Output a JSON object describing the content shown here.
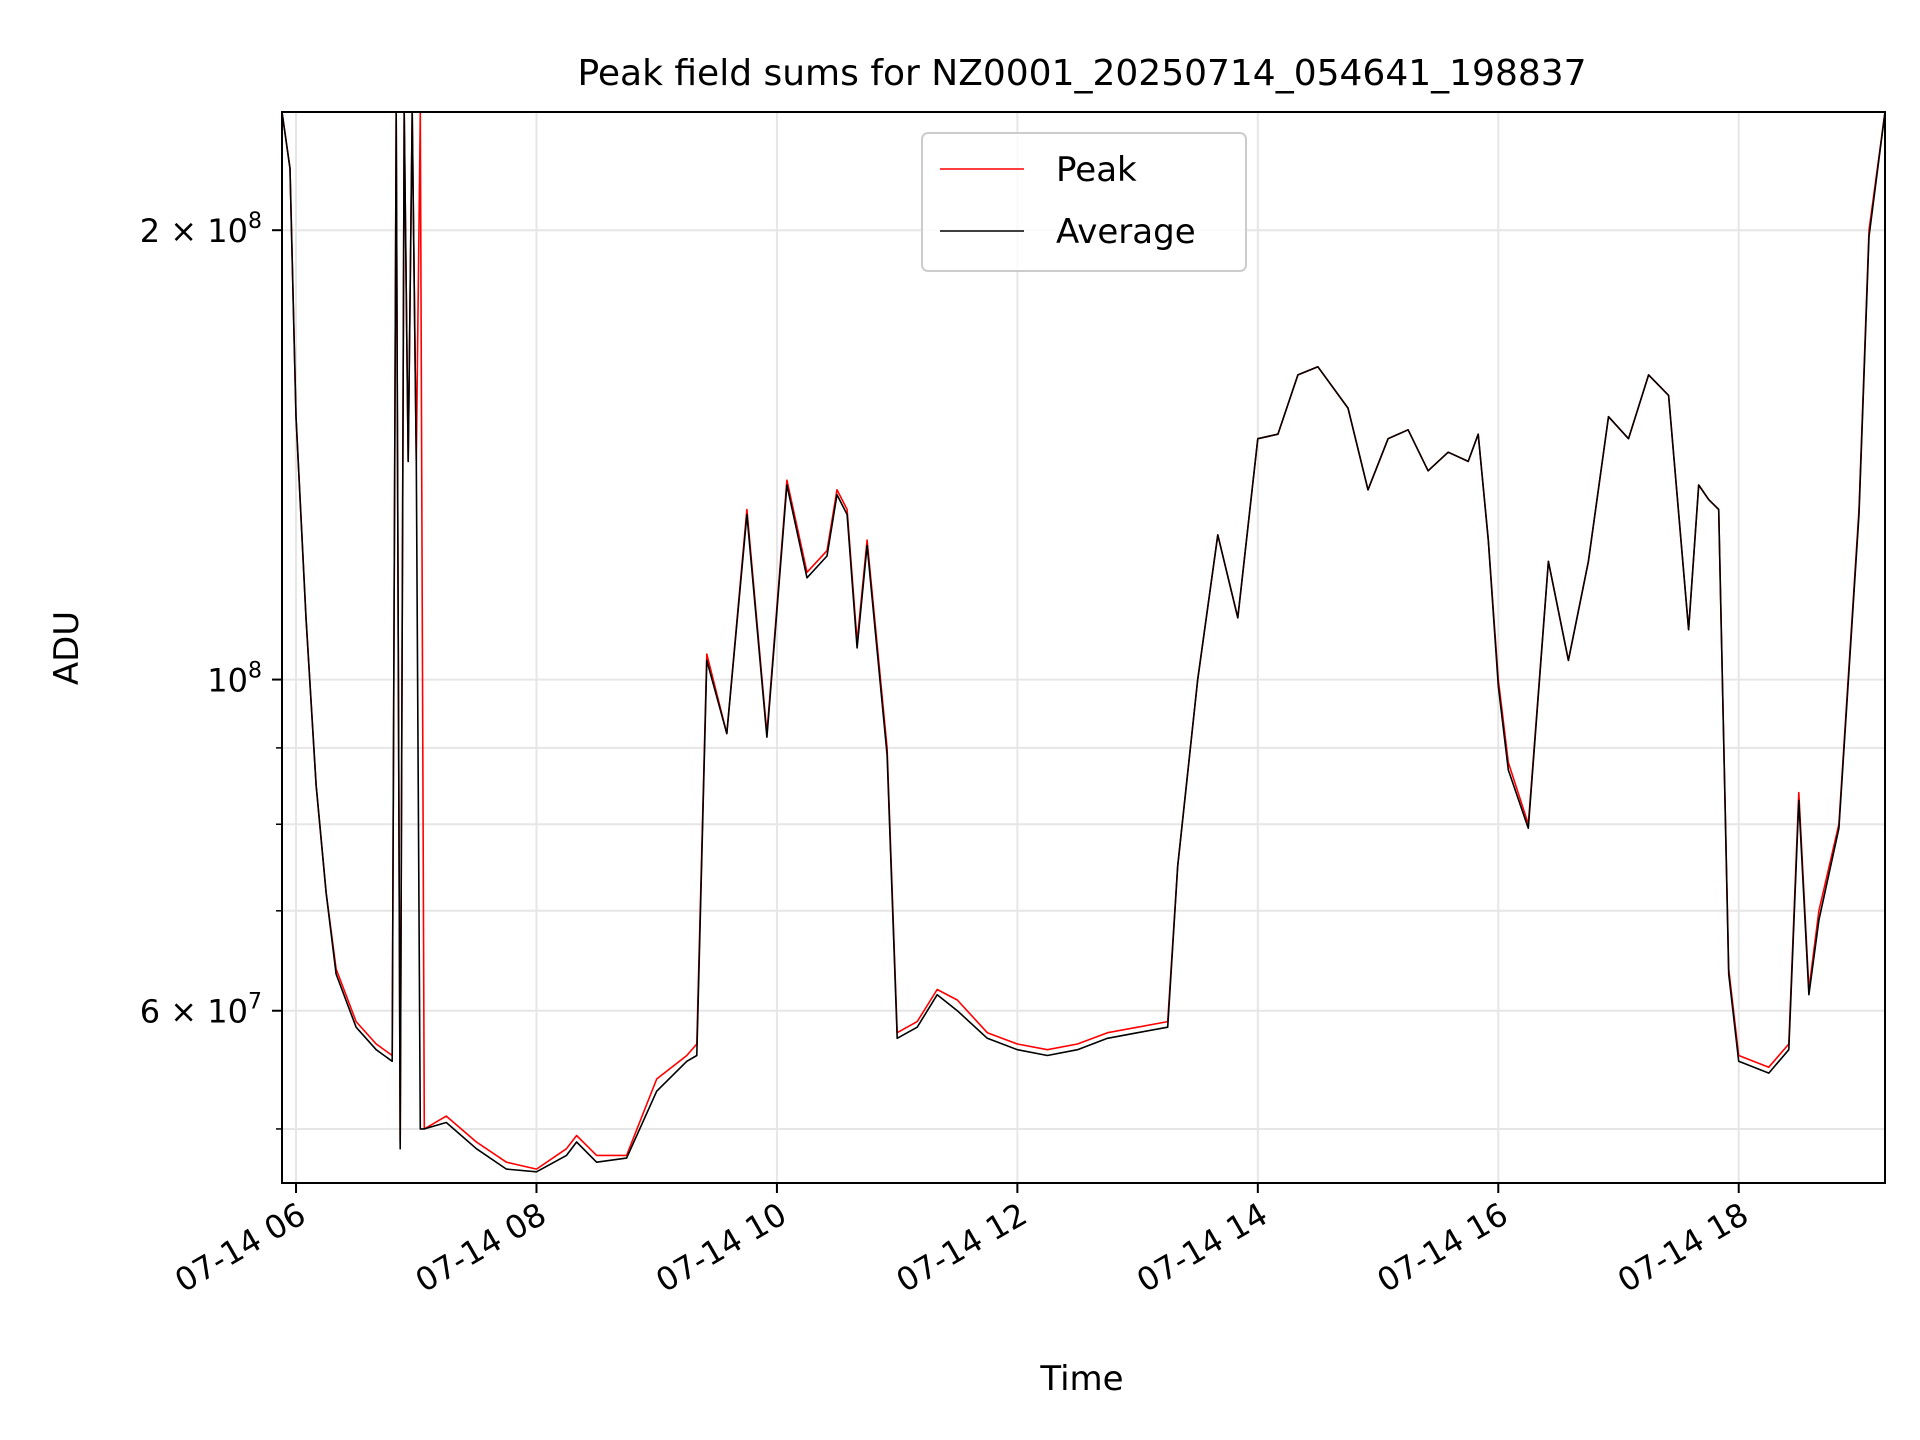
{
  "chart_data": {
    "type": "line",
    "title": "Peak field sums for NZ0001_20250714_054641_198837",
    "xlabel": "Time",
    "ylabel": "ADU",
    "y_scale": "log",
    "ylim": [
      46000000,
      240000000
    ],
    "xlim": [
      "2025-07-14 05:53",
      "2025-07-14 19:13"
    ],
    "grid": true,
    "legend_position": "upper center",
    "x_ticks": [
      {
        "t": "2025-07-14 06:00",
        "label": "07-14 06"
      },
      {
        "t": "2025-07-14 08:00",
        "label": "07-14 08"
      },
      {
        "t": "2025-07-14 10:00",
        "label": "07-14 10"
      },
      {
        "t": "2025-07-14 12:00",
        "label": "07-14 12"
      },
      {
        "t": "2025-07-14 14:00",
        "label": "07-14 14"
      },
      {
        "t": "2025-07-14 16:00",
        "label": "07-14 16"
      },
      {
        "t": "2025-07-14 18:00",
        "label": "07-14 18"
      }
    ],
    "y_ticks": [
      {
        "value": 200000000,
        "base": "2 × 10",
        "exp": "8"
      },
      {
        "value": 100000000,
        "base": "10",
        "exp": "8"
      },
      {
        "value": 60000000,
        "base": "6 × 10",
        "exp": "7"
      }
    ],
    "y_minor_ticks": [
      50000000,
      70000000,
      80000000,
      90000000
    ],
    "series": [
      {
        "name": "Peak",
        "color": "#ff0000",
        "points": [
          [
            "2025-07-14 05:53",
            240000000
          ],
          [
            "2025-07-14 05:57",
            220000000
          ],
          [
            "2025-07-14 06:00",
            150000000
          ],
          [
            "2025-07-14 06:05",
            110000000
          ],
          [
            "2025-07-14 06:10",
            85000000
          ],
          [
            "2025-07-14 06:15",
            72000000
          ],
          [
            "2025-07-14 06:20",
            64000000
          ],
          [
            "2025-07-14 06:30",
            59000000
          ],
          [
            "2025-07-14 06:40",
            57000000
          ],
          [
            "2025-07-14 06:48",
            56000000
          ],
          [
            "2025-07-14 06:50",
            240000000
          ],
          [
            "2025-07-14 06:52",
            49000000
          ],
          [
            "2025-07-14 06:54",
            240000000
          ],
          [
            "2025-07-14 06:56",
            140000000
          ],
          [
            "2025-07-14 06:58",
            240000000
          ],
          [
            "2025-07-14 07:00",
            140000000
          ],
          [
            "2025-07-14 07:02",
            240000000
          ],
          [
            "2025-07-14 07:04",
            50000000
          ],
          [
            "2025-07-14 07:15",
            51000000
          ],
          [
            "2025-07-14 07:30",
            49000000
          ],
          [
            "2025-07-14 07:45",
            47500000
          ],
          [
            "2025-07-14 08:00",
            47000000
          ],
          [
            "2025-07-14 08:15",
            48500000
          ],
          [
            "2025-07-14 08:20",
            49500000
          ],
          [
            "2025-07-14 08:30",
            48000000
          ],
          [
            "2025-07-14 08:45",
            48000000
          ],
          [
            "2025-07-14 09:00",
            54000000
          ],
          [
            "2025-07-14 09:15",
            56000000
          ],
          [
            "2025-07-14 09:20",
            57000000
          ],
          [
            "2025-07-14 09:25",
            104000000
          ],
          [
            "2025-07-14 09:35",
            92000000
          ],
          [
            "2025-07-14 09:45",
            130000000
          ],
          [
            "2025-07-14 09:55",
            92000000
          ],
          [
            "2025-07-14 10:05",
            136000000
          ],
          [
            "2025-07-14 10:15",
            118000000
          ],
          [
            "2025-07-14 10:25",
            122000000
          ],
          [
            "2025-07-14 10:30",
            134000000
          ],
          [
            "2025-07-14 10:35",
            130000000
          ],
          [
            "2025-07-14 10:40",
            106000000
          ],
          [
            "2025-07-14 10:45",
            124000000
          ],
          [
            "2025-07-14 10:55",
            90000000
          ],
          [
            "2025-07-14 11:00",
            58000000
          ],
          [
            "2025-07-14 11:10",
            59000000
          ],
          [
            "2025-07-14 11:20",
            62000000
          ],
          [
            "2025-07-14 11:30",
            61000000
          ],
          [
            "2025-07-14 11:45",
            58000000
          ],
          [
            "2025-07-14 12:00",
            57000000
          ],
          [
            "2025-07-14 12:15",
            56500000
          ],
          [
            "2025-07-14 12:30",
            57000000
          ],
          [
            "2025-07-14 12:45",
            58000000
          ],
          [
            "2025-07-14 13:00",
            58500000
          ],
          [
            "2025-07-14 13:15",
            59000000
          ],
          [
            "2025-07-14 13:20",
            75000000
          ],
          [
            "2025-07-14 13:30",
            100000000
          ],
          [
            "2025-07-14 13:40",
            125000000
          ],
          [
            "2025-07-14 13:50",
            110000000
          ],
          [
            "2025-07-14 14:00",
            145000000
          ],
          [
            "2025-07-14 14:10",
            146000000
          ],
          [
            "2025-07-14 14:20",
            160000000
          ],
          [
            "2025-07-14 14:30",
            162000000
          ],
          [
            "2025-07-14 14:45",
            152000000
          ],
          [
            "2025-07-14 14:55",
            134000000
          ],
          [
            "2025-07-14 15:05",
            145000000
          ],
          [
            "2025-07-14 15:15",
            147000000
          ],
          [
            "2025-07-14 15:25",
            138000000
          ],
          [
            "2025-07-14 15:35",
            142000000
          ],
          [
            "2025-07-14 15:45",
            140000000
          ],
          [
            "2025-07-14 15:50",
            146000000
          ],
          [
            "2025-07-14 15:55",
            124000000
          ],
          [
            "2025-07-14 16:00",
            100000000
          ],
          [
            "2025-07-14 16:05",
            88000000
          ],
          [
            "2025-07-14 16:15",
            80000000
          ],
          [
            "2025-07-14 16:25",
            120000000
          ],
          [
            "2025-07-14 16:35",
            103000000
          ],
          [
            "2025-07-14 16:45",
            120000000
          ],
          [
            "2025-07-14 16:55",
            150000000
          ],
          [
            "2025-07-14 17:05",
            145000000
          ],
          [
            "2025-07-14 17:15",
            160000000
          ],
          [
            "2025-07-14 17:25",
            155000000
          ],
          [
            "2025-07-14 17:35",
            108000000
          ],
          [
            "2025-07-14 17:40",
            135000000
          ],
          [
            "2025-07-14 17:45",
            132000000
          ],
          [
            "2025-07-14 17:50",
            130000000
          ],
          [
            "2025-07-14 17:55",
            64000000
          ],
          [
            "2025-07-14 18:00",
            56000000
          ],
          [
            "2025-07-14 18:15",
            55000000
          ],
          [
            "2025-07-14 18:25",
            57000000
          ],
          [
            "2025-07-14 18:30",
            84000000
          ],
          [
            "2025-07-14 18:35",
            62000000
          ],
          [
            "2025-07-14 18:40",
            70000000
          ],
          [
            "2025-07-14 18:50",
            80000000
          ],
          [
            "2025-07-14 19:00",
            130000000
          ],
          [
            "2025-07-14 19:05",
            200000000
          ],
          [
            "2025-07-14 19:13",
            240000000
          ]
        ]
      },
      {
        "name": "Average",
        "color": "#000000",
        "points": [
          [
            "2025-07-14 05:53",
            240000000
          ],
          [
            "2025-07-14 05:57",
            220000000
          ],
          [
            "2025-07-14 06:00",
            150000000
          ],
          [
            "2025-07-14 06:05",
            110000000
          ],
          [
            "2025-07-14 06:10",
            85000000
          ],
          [
            "2025-07-14 06:15",
            72000000
          ],
          [
            "2025-07-14 06:20",
            63500000
          ],
          [
            "2025-07-14 06:30",
            58500000
          ],
          [
            "2025-07-14 06:40",
            56500000
          ],
          [
            "2025-07-14 06:48",
            55500000
          ],
          [
            "2025-07-14 06:50",
            240000000
          ],
          [
            "2025-07-14 06:52",
            48500000
          ],
          [
            "2025-07-14 06:54",
            240000000
          ],
          [
            "2025-07-14 06:56",
            140000000
          ],
          [
            "2025-07-14 06:58",
            240000000
          ],
          [
            "2025-07-14 07:00",
            140000000
          ],
          [
            "2025-07-14 07:02",
            50000000
          ],
          [
            "2025-07-14 07:04",
            50000000
          ],
          [
            "2025-07-14 07:15",
            50500000
          ],
          [
            "2025-07-14 07:30",
            48500000
          ],
          [
            "2025-07-14 07:45",
            47000000
          ],
          [
            "2025-07-14 08:00",
            46800000
          ],
          [
            "2025-07-14 08:15",
            48000000
          ],
          [
            "2025-07-14 08:20",
            49000000
          ],
          [
            "2025-07-14 08:30",
            47500000
          ],
          [
            "2025-07-14 08:45",
            47800000
          ],
          [
            "2025-07-14 09:00",
            53000000
          ],
          [
            "2025-07-14 09:15",
            55500000
          ],
          [
            "2025-07-14 09:20",
            56000000
          ],
          [
            "2025-07-14 09:25",
            103000000
          ],
          [
            "2025-07-14 09:35",
            92000000
          ],
          [
            "2025-07-14 09:45",
            129000000
          ],
          [
            "2025-07-14 09:55",
            91500000
          ],
          [
            "2025-07-14 10:05",
            135000000
          ],
          [
            "2025-07-14 10:15",
            117000000
          ],
          [
            "2025-07-14 10:25",
            121000000
          ],
          [
            "2025-07-14 10:30",
            133000000
          ],
          [
            "2025-07-14 10:35",
            129000000
          ],
          [
            "2025-07-14 10:40",
            105000000
          ],
          [
            "2025-07-14 10:45",
            123000000
          ],
          [
            "2025-07-14 10:55",
            89000000
          ],
          [
            "2025-07-14 11:00",
            57500000
          ],
          [
            "2025-07-14 11:10",
            58500000
          ],
          [
            "2025-07-14 11:20",
            61500000
          ],
          [
            "2025-07-14 11:30",
            60000000
          ],
          [
            "2025-07-14 11:45",
            57500000
          ],
          [
            "2025-07-14 12:00",
            56500000
          ],
          [
            "2025-07-14 12:15",
            56000000
          ],
          [
            "2025-07-14 12:30",
            56500000
          ],
          [
            "2025-07-14 12:45",
            57500000
          ],
          [
            "2025-07-14 13:00",
            58000000
          ],
          [
            "2025-07-14 13:15",
            58500000
          ],
          [
            "2025-07-14 13:20",
            75000000
          ],
          [
            "2025-07-14 13:30",
            100000000
          ],
          [
            "2025-07-14 13:40",
            125000000
          ],
          [
            "2025-07-14 13:50",
            110000000
          ],
          [
            "2025-07-14 14:00",
            145000000
          ],
          [
            "2025-07-14 14:10",
            146000000
          ],
          [
            "2025-07-14 14:20",
            160000000
          ],
          [
            "2025-07-14 14:30",
            162000000
          ],
          [
            "2025-07-14 14:45",
            152000000
          ],
          [
            "2025-07-14 14:55",
            134000000
          ],
          [
            "2025-07-14 15:05",
            145000000
          ],
          [
            "2025-07-14 15:15",
            147000000
          ],
          [
            "2025-07-14 15:25",
            138000000
          ],
          [
            "2025-07-14 15:35",
            142000000
          ],
          [
            "2025-07-14 15:45",
            140000000
          ],
          [
            "2025-07-14 15:50",
            146000000
          ],
          [
            "2025-07-14 15:55",
            124000000
          ],
          [
            "2025-07-14 16:00",
            99000000
          ],
          [
            "2025-07-14 16:05",
            87000000
          ],
          [
            "2025-07-14 16:15",
            79500000
          ],
          [
            "2025-07-14 16:25",
            120000000
          ],
          [
            "2025-07-14 16:35",
            103000000
          ],
          [
            "2025-07-14 16:45",
            120000000
          ],
          [
            "2025-07-14 16:55",
            150000000
          ],
          [
            "2025-07-14 17:05",
            145000000
          ],
          [
            "2025-07-14 17:15",
            160000000
          ],
          [
            "2025-07-14 17:25",
            155000000
          ],
          [
            "2025-07-14 17:35",
            108000000
          ],
          [
            "2025-07-14 17:40",
            135000000
          ],
          [
            "2025-07-14 17:45",
            132000000
          ],
          [
            "2025-07-14 17:50",
            130000000
          ],
          [
            "2025-07-14 17:55",
            63500000
          ],
          [
            "2025-07-14 18:00",
            55500000
          ],
          [
            "2025-07-14 18:15",
            54500000
          ],
          [
            "2025-07-14 18:25",
            56500000
          ],
          [
            "2025-07-14 18:30",
            83000000
          ],
          [
            "2025-07-14 18:35",
            61500000
          ],
          [
            "2025-07-14 18:40",
            69000000
          ],
          [
            "2025-07-14 18:50",
            79500000
          ],
          [
            "2025-07-14 19:00",
            129000000
          ],
          [
            "2025-07-14 19:05",
            198000000
          ],
          [
            "2025-07-14 19:13",
            240000000
          ]
        ]
      }
    ]
  }
}
